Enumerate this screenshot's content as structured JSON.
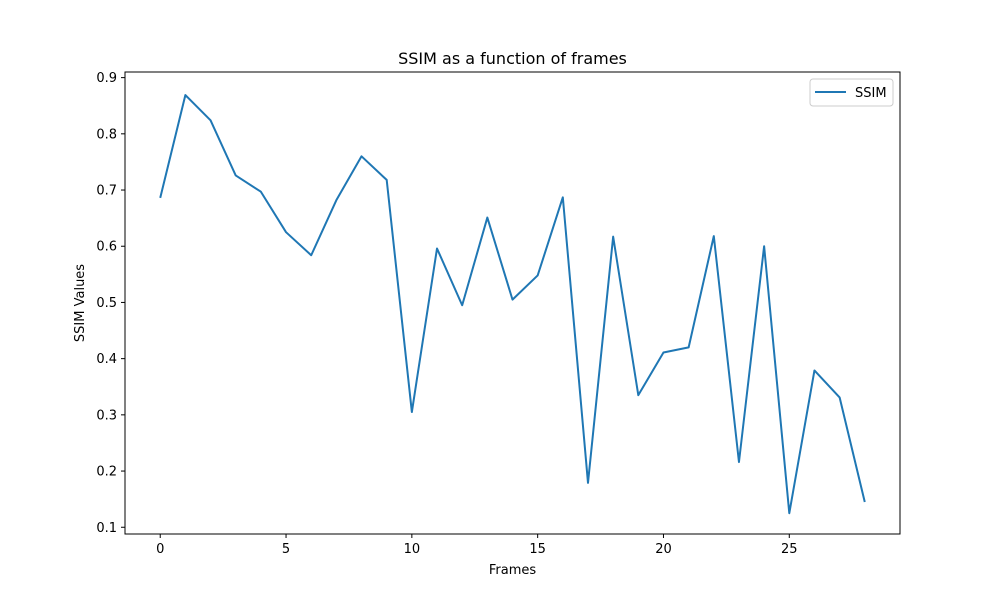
{
  "chart_data": {
    "type": "line",
    "title": "SSIM as a function of frames",
    "xlabel": "Frames",
    "ylabel": "SSIM Values",
    "xlim": [
      -1.4,
      29.4
    ],
    "ylim": [
      0.088,
      0.91
    ],
    "xticks": [
      0,
      5,
      10,
      15,
      20,
      25
    ],
    "yticks": [
      0.1,
      0.2,
      0.3,
      0.4,
      0.5,
      0.6,
      0.7,
      0.8,
      0.9
    ],
    "legend_position": "top-right",
    "grid": false,
    "series": [
      {
        "name": "SSIM",
        "color": "#1f77b4",
        "x": [
          0,
          1,
          2,
          3,
          4,
          5,
          6,
          7,
          8,
          9,
          10,
          11,
          12,
          13,
          14,
          15,
          16,
          17,
          18,
          19,
          20,
          21,
          22,
          23,
          24,
          25,
          26,
          27,
          28
        ],
        "y": [
          0.686,
          0.869,
          0.824,
          0.726,
          0.697,
          0.625,
          0.584,
          0.682,
          0.76,
          0.718,
          0.305,
          0.596,
          0.495,
          0.651,
          0.505,
          0.548,
          0.687,
          0.179,
          0.617,
          0.335,
          0.411,
          0.42,
          0.618,
          0.216,
          0.6,
          0.125,
          0.379,
          0.331,
          0.145
        ]
      }
    ]
  }
}
